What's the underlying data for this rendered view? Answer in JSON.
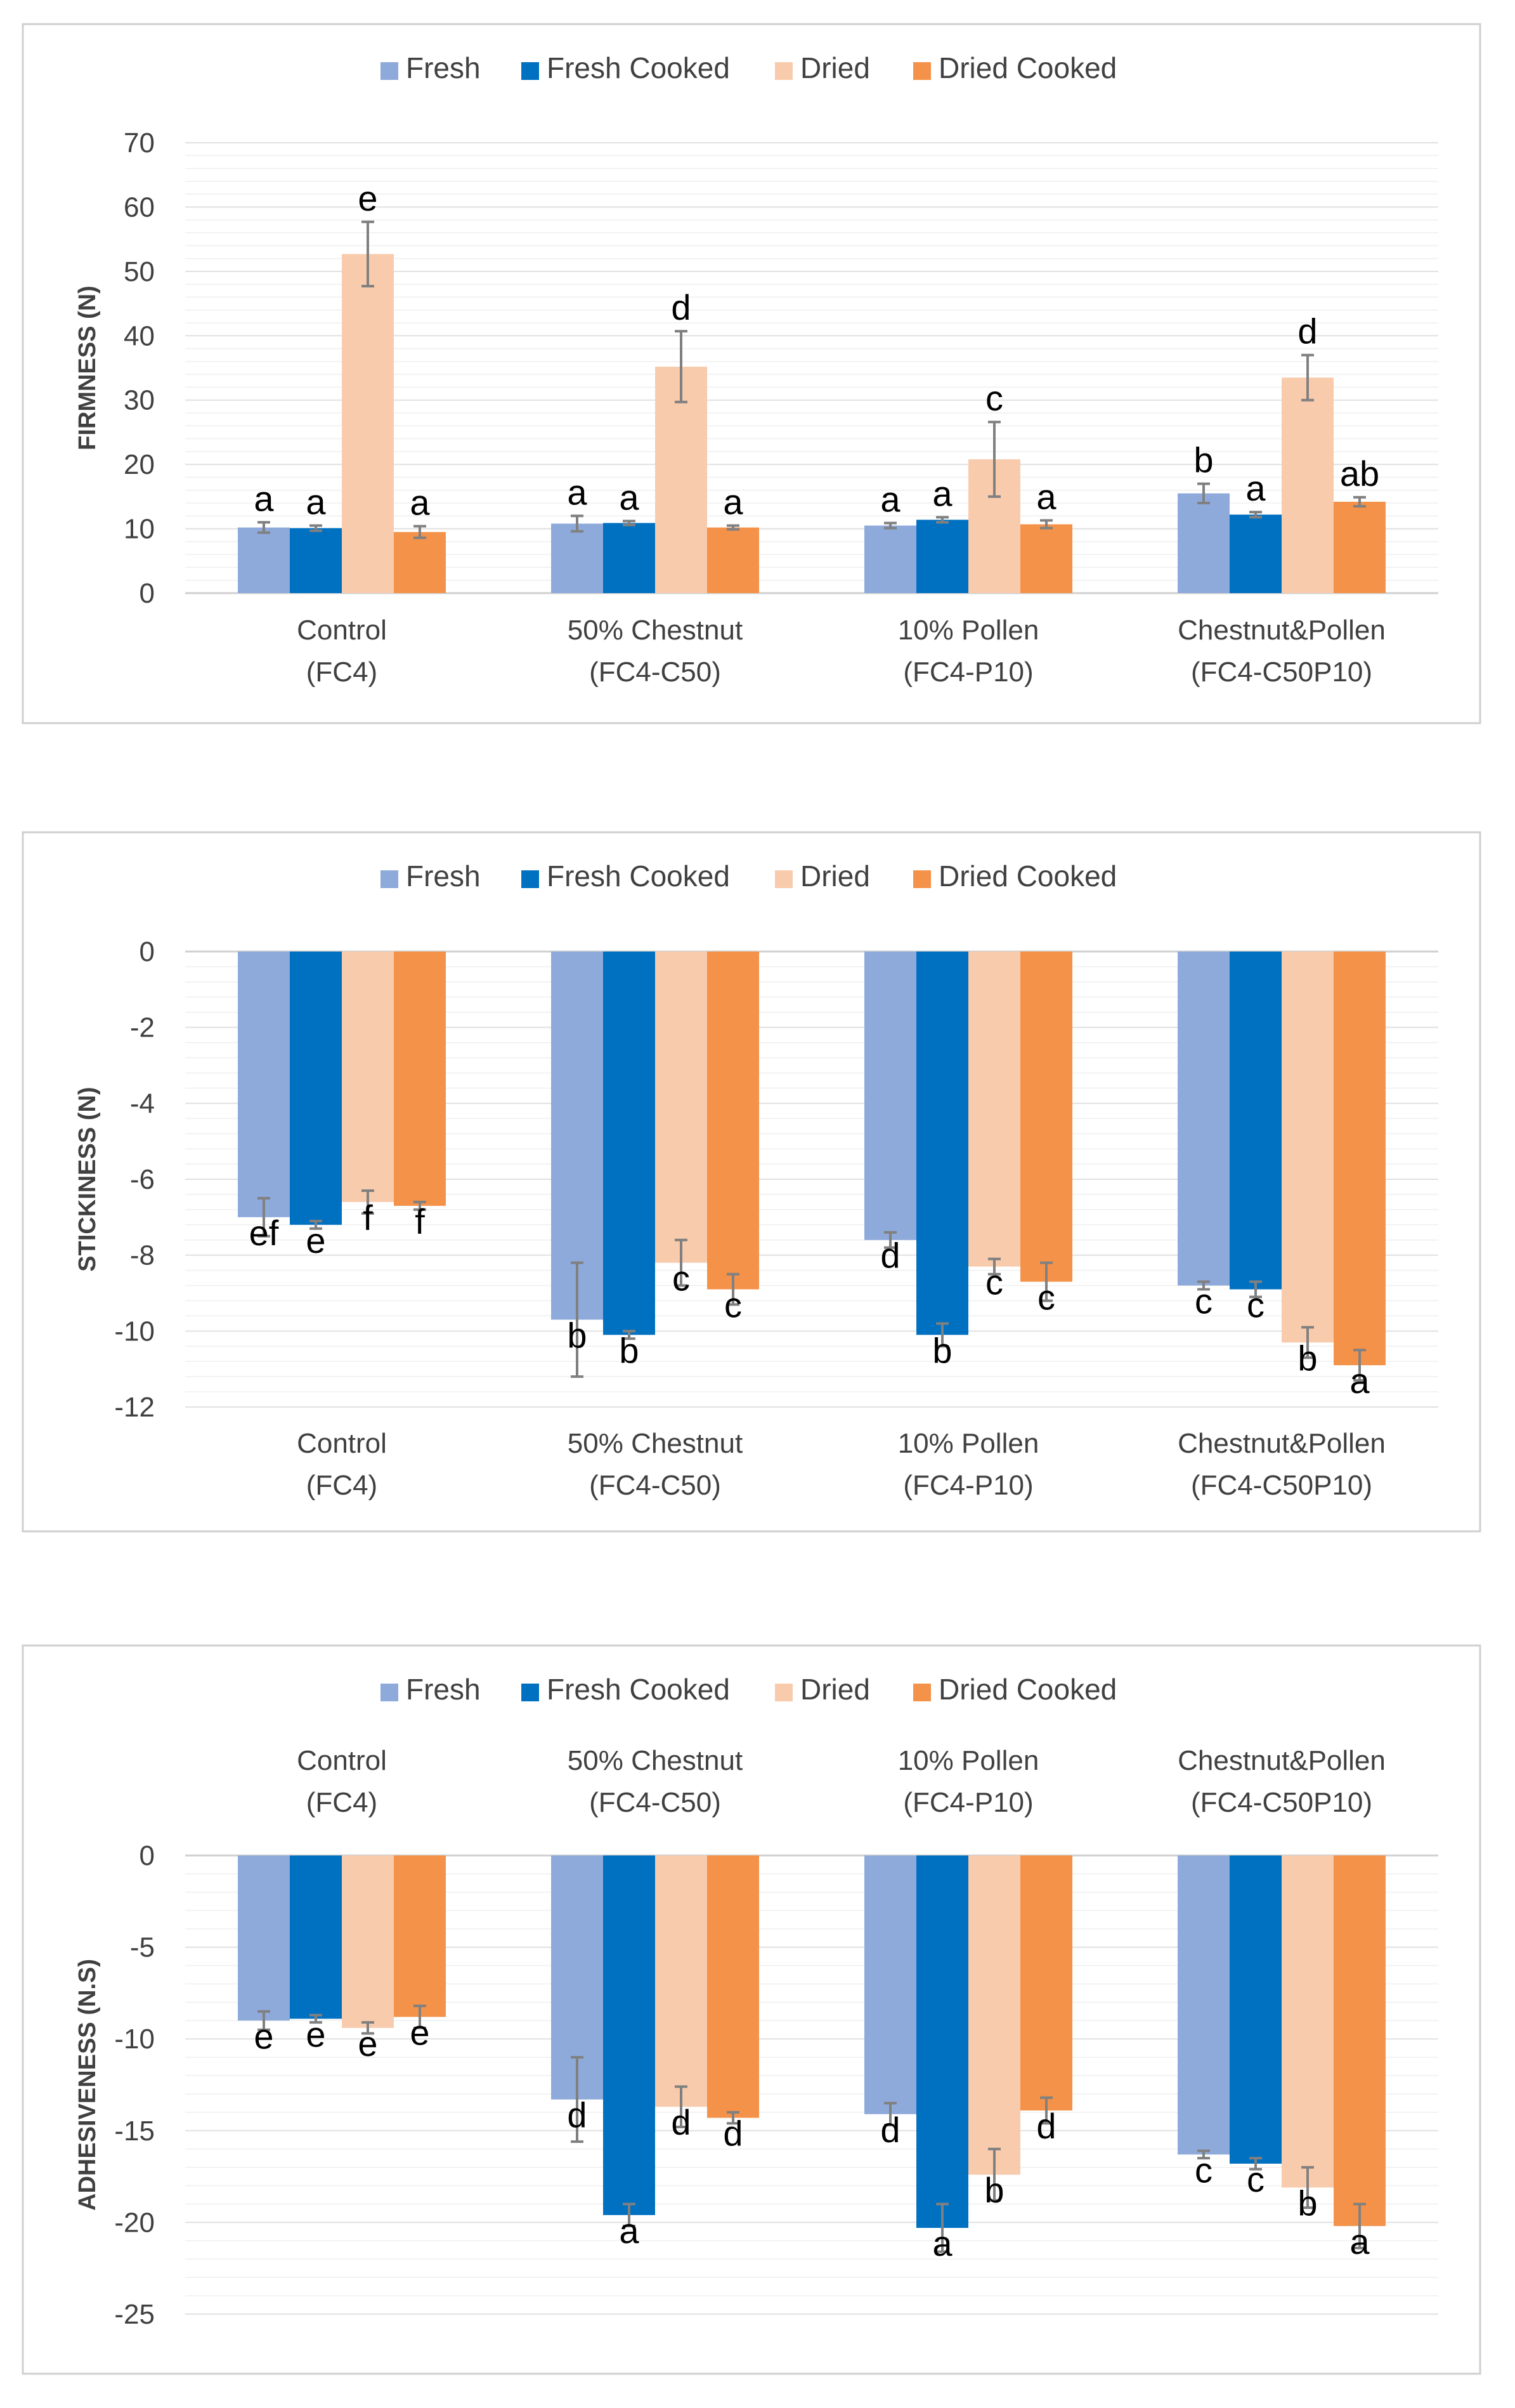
{
  "colors": {
    "Fresh": "#8eaadb",
    "Fresh Cooked": "#0070c0",
    "Dried": "#f8cbad",
    "Dried Cooked": "#f4924a"
  },
  "chart_data": [
    {
      "type": "bar",
      "title": "",
      "xlabel": "",
      "ylabel": "FIRMNESS (N)",
      "ylim": [
        0,
        70
      ],
      "yticks": [
        0,
        10,
        20,
        30,
        40,
        50,
        60,
        70
      ],
      "legend_position": "top",
      "grid": true,
      "category_position": "bottom",
      "categories": [
        [
          "Control",
          "(FC4)"
        ],
        [
          "50% Chestnut",
          "(FC4-C50)"
        ],
        [
          "10% Pollen",
          "(FC4-P10)"
        ],
        [
          "Chestnut&Pollen",
          "(FC4-C50P10)"
        ]
      ],
      "series": [
        {
          "name": "Fresh",
          "values": [
            10.2,
            10.8,
            10.5,
            15.5
          ],
          "errors": [
            0.8,
            1.2,
            0.4,
            1.5
          ],
          "letters": [
            "a",
            "a",
            "a",
            "b"
          ]
        },
        {
          "name": "Fresh Cooked",
          "values": [
            10.1,
            10.9,
            11.4,
            12.2
          ],
          "errors": [
            0.4,
            0.3,
            0.4,
            0.4
          ],
          "letters": [
            "a",
            "a",
            "a",
            "a"
          ]
        },
        {
          "name": "Dried",
          "values": [
            52.7,
            35.2,
            20.8,
            33.5
          ],
          "errors": [
            5.0,
            5.5,
            5.8,
            3.5
          ],
          "letters": [
            "e",
            "d",
            "c",
            "d"
          ]
        },
        {
          "name": "Dried Cooked",
          "values": [
            9.5,
            10.2,
            10.7,
            14.2
          ],
          "errors": [
            0.9,
            0.3,
            0.6,
            0.7
          ],
          "letters": [
            "a",
            "a",
            "a",
            "ab"
          ]
        }
      ]
    },
    {
      "type": "bar",
      "title": "",
      "xlabel": "",
      "ylabel": "STICKINESS (N)",
      "ylim": [
        -12,
        0
      ],
      "yticks": [
        0,
        -2,
        -4,
        -6,
        -8,
        -10,
        -12
      ],
      "legend_position": "top",
      "grid": true,
      "category_position": "bottom",
      "categories": [
        [
          "Control",
          "(FC4)"
        ],
        [
          "50% Chestnut",
          "(FC4-C50)"
        ],
        [
          "10% Pollen",
          "(FC4-P10)"
        ],
        [
          "Chestnut&Pollen",
          "(FC4-C50P10)"
        ]
      ],
      "series": [
        {
          "name": "Fresh",
          "values": [
            -7.0,
            -9.7,
            -7.6,
            -8.8
          ],
          "errors": [
            0.5,
            1.5,
            0.2,
            0.1
          ],
          "letters": [
            "ef",
            "b",
            "d",
            "c"
          ]
        },
        {
          "name": "Fresh Cooked",
          "values": [
            -7.2,
            -10.1,
            -10.1,
            -8.9
          ],
          "errors": [
            0.1,
            0.1,
            0.3,
            0.2
          ],
          "letters": [
            "e",
            "b",
            "b",
            "c"
          ]
        },
        {
          "name": "Dried",
          "values": [
            -6.6,
            -8.2,
            -8.3,
            -10.3
          ],
          "errors": [
            0.3,
            0.6,
            0.2,
            0.4
          ],
          "letters": [
            "f",
            "c",
            "c",
            "b"
          ]
        },
        {
          "name": "Dried Cooked",
          "values": [
            -6.7,
            -8.9,
            -8.7,
            -10.9
          ],
          "errors": [
            0.1,
            0.4,
            0.5,
            0.4
          ],
          "letters": [
            "f",
            "c",
            "c",
            "a"
          ]
        }
      ]
    },
    {
      "type": "bar",
      "title": "",
      "xlabel": "",
      "ylabel": "ADHESIVENESS (N.S)",
      "ylim": [
        -25,
        0
      ],
      "yticks": [
        0,
        -5,
        -10,
        -15,
        -20,
        -25
      ],
      "legend_position": "top",
      "grid": true,
      "category_position": "top",
      "categories": [
        [
          "Control",
          "(FC4)"
        ],
        [
          "50% Chestnut",
          "(FC4-C50)"
        ],
        [
          "10% Pollen",
          "(FC4-P10)"
        ],
        [
          "Chestnut&Pollen",
          "(FC4-C50P10)"
        ]
      ],
      "series": [
        {
          "name": "Fresh",
          "values": [
            -9.0,
            -13.3,
            -14.1,
            -16.3
          ],
          "errors": [
            0.5,
            2.3,
            0.6,
            0.2
          ],
          "letters": [
            "e",
            "d",
            "d",
            "c"
          ]
        },
        {
          "name": "Fresh Cooked",
          "values": [
            -8.9,
            -19.6,
            -20.3,
            -16.8
          ],
          "errors": [
            0.2,
            0.6,
            1.3,
            0.3
          ],
          "letters": [
            "e",
            "a",
            "a",
            "c"
          ]
        },
        {
          "name": "Dried",
          "values": [
            -9.4,
            -13.7,
            -17.4,
            -18.1
          ],
          "errors": [
            0.3,
            1.1,
            1.4,
            1.1
          ],
          "letters": [
            "e",
            "d",
            "b",
            "b"
          ]
        },
        {
          "name": "Dried Cooked",
          "values": [
            -8.8,
            -14.3,
            -13.9,
            -20.2
          ],
          "errors": [
            0.6,
            0.3,
            0.7,
            1.2
          ],
          "letters": [
            "e",
            "d",
            "d",
            "a"
          ]
        }
      ]
    }
  ]
}
